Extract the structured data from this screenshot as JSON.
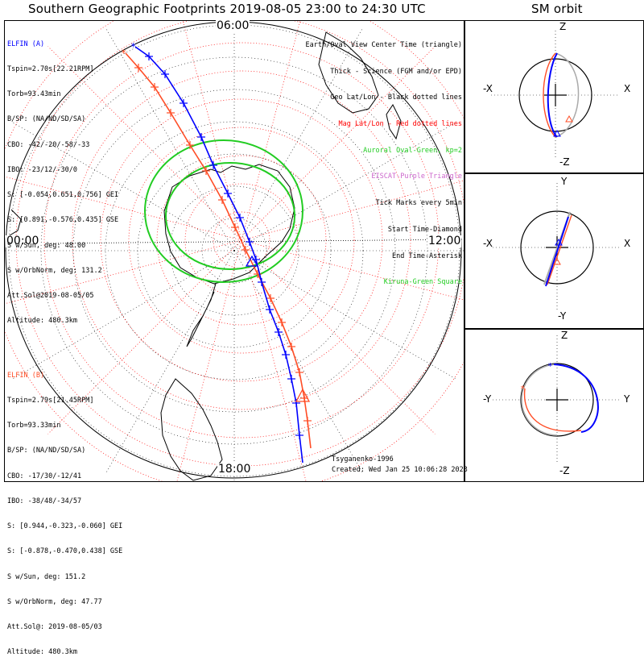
{
  "titles": {
    "main": "Southern Geographic Footprints 2019-08-05 23:00 to 24:30 UTC",
    "side": "SM orbit"
  },
  "hour_labels": {
    "top": "06:00",
    "left": "00:00",
    "right": "12:00",
    "bottom": "18:00"
  },
  "elfin_a": {
    "header": "ELFIN (A)",
    "lines": [
      "Tspin=2.70s[22.21RPM]",
      "Torb=93.43min",
      "B/SP: (NA/ND/SD/SA)",
      "CBO: -42/-20/-58/-33",
      "IBO: -23/12/-30/0",
      "S: [-0.054,0.651,0.756] GEI",
      "S: [0.891,-0.576,0.435] GSE",
      "S w/Sun, deg: 48.00",
      "S w/OrbNorm, deg: 131.2",
      "Att.Sol@2019-08-05/05",
      "Altitude: 480.3km"
    ],
    "color": "#0000ff"
  },
  "elfin_b": {
    "header": "ELFIN (B)",
    "lines": [
      "Tspin=2.79s[21.45RPM]",
      "Torb=93.33min",
      "B/SP: (NA/ND/SD/SA)",
      "CBO: -17/30/-12/41",
      "IBO: -38/48/-34/57",
      "S: [0.944,-0.323,-0.060] GEI",
      "S: [-0.878,-0.470,0.438] GSE",
      "S w/Sun, deg: 151.2",
      "S w/OrbNorm, deg: 47.77",
      "Att.Sol@: 2019-08-05/03",
      "Altitude: 480.3km"
    ],
    "color": "#ff4d26"
  },
  "legend": [
    {
      "text": "Earth/Oval View Center Time (triangle)",
      "color": "#000000"
    },
    {
      "text": "Thick - Science (FGM and/or EPD)",
      "color": "#000000"
    },
    {
      "text": "Geo Lat/Lon - Black dotted lines",
      "color": "#000000"
    },
    {
      "text": "Mag Lat/Lon - Red dotted lines",
      "color": "#ff0000"
    },
    {
      "text": "Auroral Oval-Green, kp=2",
      "color": "#22cc22"
    },
    {
      "text": "EISCAT-Purple Triangle",
      "color": "#cc66cc"
    },
    {
      "text": "Tick Marks every 5min",
      "color": "#000000"
    },
    {
      "text": "Start Time-Diamond",
      "color": "#000000"
    },
    {
      "text": "End Time-Asterisk",
      "color": "#000000"
    },
    {
      "text": "Kiruna-Green Square",
      "color": "#22cc22"
    }
  ],
  "credits": {
    "model": "Tsyganenko-1996",
    "created": "Created: Wed Jan 25 10:06:28 2023"
  },
  "orbit_panels": [
    {
      "top_label": "Z",
      "bottom_label": "-Z",
      "left_label": "-X",
      "right_label": "X"
    },
    {
      "top_label": "Y",
      "bottom_label": "-Y",
      "left_label": "-X",
      "right_label": "X"
    },
    {
      "top_label": "Z",
      "bottom_label": "-Z",
      "left_label": "-Y",
      "right_label": "Y"
    }
  ],
  "colors": {
    "elfin_a": "#0000ff",
    "elfin_b": "#ff4d26",
    "oval": "#22cc22",
    "mag_grid": "#ff0000",
    "geo_grid": "#000000"
  }
}
